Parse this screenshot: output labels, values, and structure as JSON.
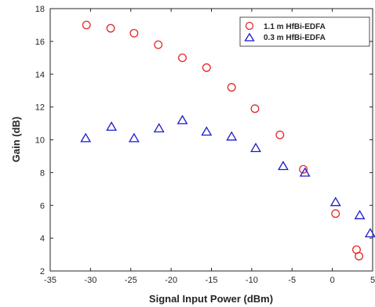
{
  "chart_data": {
    "type": "scatter",
    "title": "",
    "xlabel": "Signal Input Power (dBm)",
    "ylabel": "Gain (dB)",
    "xlim": [
      -35,
      5
    ],
    "ylim": [
      2,
      18
    ],
    "xticks": [
      "-35",
      "-30",
      "-25",
      "-20",
      "-15",
      "-10",
      "-5",
      "0",
      "5"
    ],
    "yticks": [
      "2",
      "4",
      "6",
      "8",
      "10",
      "12",
      "14",
      "16",
      "18"
    ],
    "grid": false,
    "legend_position": "top-right",
    "series": [
      {
        "name": "1.1 m HfBi-EDFA",
        "marker": "circle",
        "color": "#e8262a",
        "points": [
          [
            -30.5,
            17.0
          ],
          [
            -27.5,
            16.8
          ],
          [
            -24.6,
            16.5
          ],
          [
            -21.6,
            15.8
          ],
          [
            -18.6,
            15.0
          ],
          [
            -15.6,
            14.4
          ],
          [
            -12.5,
            13.2
          ],
          [
            -9.6,
            11.9
          ],
          [
            -6.5,
            10.3
          ],
          [
            -3.6,
            8.2
          ],
          [
            0.4,
            5.5
          ],
          [
            3.0,
            3.3
          ],
          [
            3.3,
            2.9
          ]
        ]
      },
      {
        "name": "0.3 m HfBi-EDFA",
        "marker": "triangle",
        "color": "#1a1acc",
        "points": [
          [
            -30.6,
            10.1
          ],
          [
            -27.4,
            10.8
          ],
          [
            -24.6,
            10.1
          ],
          [
            -21.5,
            10.7
          ],
          [
            -18.6,
            11.2
          ],
          [
            -15.6,
            10.5
          ],
          [
            -12.5,
            10.2
          ],
          [
            -9.5,
            9.5
          ],
          [
            -6.1,
            8.4
          ],
          [
            -3.4,
            8.0
          ],
          [
            0.4,
            6.2
          ],
          [
            3.4,
            5.4
          ],
          [
            4.7,
            4.3
          ]
        ]
      }
    ]
  }
}
